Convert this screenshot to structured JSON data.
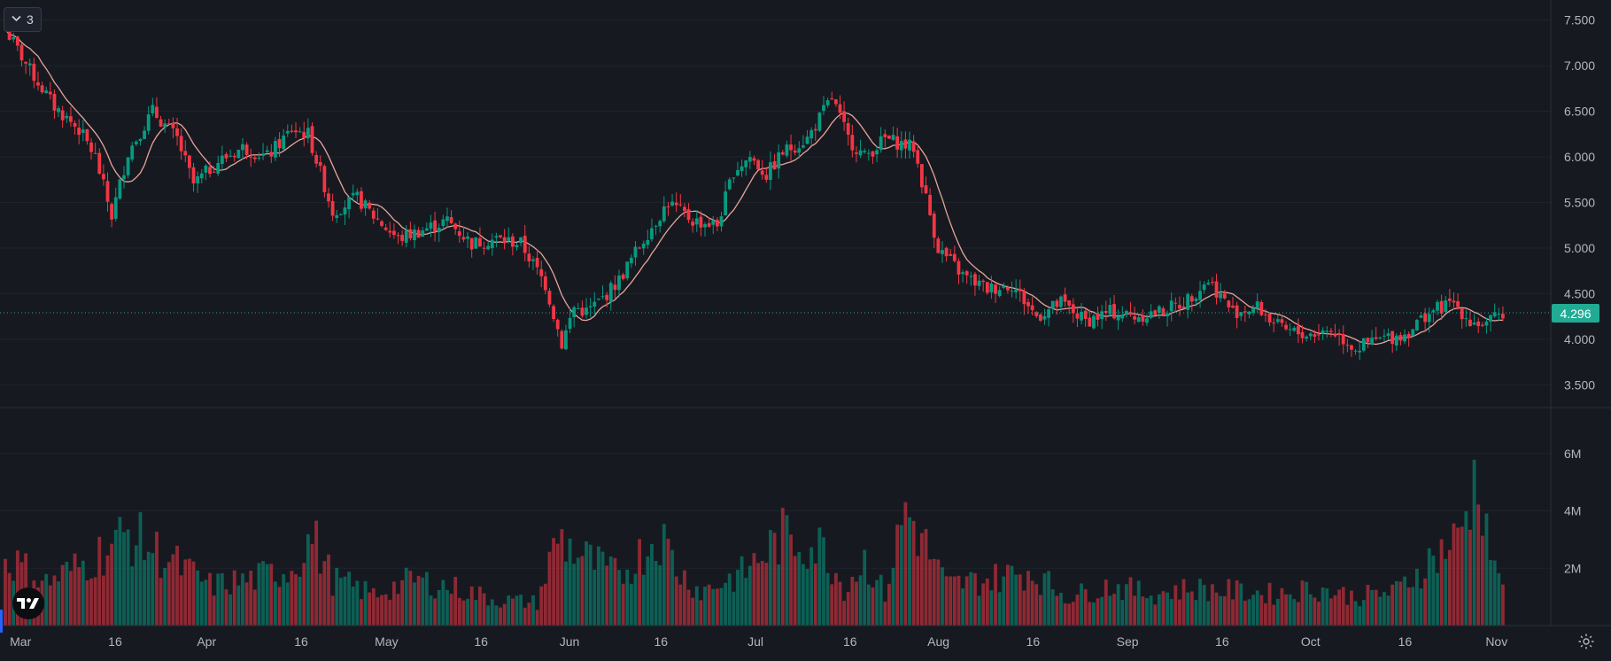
{
  "toolbar": {
    "layers_label": "3"
  },
  "colors": {
    "up": "#089981",
    "down": "#f23645",
    "ma_line": "#e8a39b",
    "background": "#161a20",
    "last_price": "#22ab94",
    "grid": "#1f232b"
  },
  "icons": {
    "collapse": "chevron-down-icon",
    "logo": "tradingview-logo-icon",
    "settings": "gear-icon"
  },
  "chart_data": {
    "type": "candlestick",
    "last_price_label": "4.296",
    "price_axis": {
      "ylim": [
        3.25,
        7.72
      ],
      "ticks": [
        "3.500",
        "4.000",
        "4.500",
        "5.000",
        "5.500",
        "6.000",
        "6.500",
        "7.000",
        "7.500"
      ]
    },
    "volume_axis": {
      "ylim": [
        0,
        7.6
      ],
      "ticks": [
        "2M",
        "4M",
        "6M"
      ]
    },
    "x_ticks": [
      "Mar",
      "16",
      "Apr",
      "16",
      "May",
      "16",
      "Jun",
      "16",
      "Jul",
      "16",
      "Aug",
      "16",
      "Sep",
      "16",
      "Oct",
      "16",
      "Nov"
    ],
    "grid": true,
    "series": [
      {
        "name": "",
        "kind": "ohlc_anchors",
        "x": [
          0,
          6,
          12,
          18,
          22,
          26,
          30,
          36,
          42,
          46,
          52,
          58,
          64,
          70,
          74,
          80,
          86,
          90,
          96,
          102,
          108,
          114,
          120,
          126,
          132,
          136,
          139,
          142,
          146,
          150,
          156,
          162,
          168,
          174,
          178,
          182,
          186,
          190,
          196,
          202,
          206,
          210,
          215,
          222,
          228,
          234,
          240,
          246,
          252,
          258,
          264,
          270,
          276,
          282,
          288,
          294,
          300,
          306,
          312,
          318,
          324,
          330,
          336,
          342,
          348,
          354,
          358,
          362,
          366
        ],
        "close": [
          7.4,
          6.95,
          6.55,
          6.3,
          6.0,
          5.35,
          6.05,
          6.5,
          6.2,
          5.7,
          5.95,
          6.1,
          6.0,
          6.3,
          6.25,
          5.4,
          5.55,
          5.35,
          5.1,
          5.2,
          5.3,
          5.05,
          5.1,
          5.05,
          4.6,
          3.95,
          4.35,
          4.3,
          4.45,
          4.65,
          5.1,
          5.5,
          5.3,
          5.25,
          5.85,
          6.0,
          5.8,
          6.05,
          6.2,
          6.65,
          6.2,
          6.0,
          6.2,
          6.1,
          5.0,
          4.7,
          4.55,
          4.6,
          4.25,
          4.4,
          4.2,
          4.3,
          4.25,
          4.3,
          4.4,
          4.65,
          4.3,
          4.35,
          4.1,
          4.05,
          4.1,
          3.9,
          4.0,
          4.05,
          4.3,
          4.4,
          4.2,
          4.15,
          4.3
        ]
      },
      {
        "name": "",
        "kind": "volume_anchors",
        "x": [
          0,
          10,
          20,
          30,
          40,
          50,
          60,
          70,
          75,
          80,
          90,
          100,
          110,
          120,
          130,
          135,
          140,
          150,
          160,
          165,
          170,
          180,
          190,
          200,
          205,
          210,
          215,
          220,
          230,
          240,
          250,
          260,
          270,
          280,
          290,
          300,
          310,
          320,
          330,
          340,
          350,
          355,
          360,
          362,
          364,
          366
        ],
        "volume": [
          2.4,
          1.5,
          2.2,
          3.2,
          2.3,
          1.4,
          1.6,
          2.0,
          3.1,
          1.6,
          1.1,
          1.6,
          1.3,
          0.9,
          0.8,
          3.1,
          2.5,
          1.7,
          3.2,
          1.8,
          1.2,
          1.8,
          3.1,
          2.7,
          1.3,
          2.3,
          1.1,
          4.1,
          1.4,
          1.6,
          1.9,
          1.0,
          1.4,
          1.1,
          1.3,
          1.2,
          1.1,
          1.3,
          1.0,
          1.2,
          2.5,
          3.0,
          5.4,
          3.6,
          1.8,
          1.8
        ]
      }
    ]
  }
}
